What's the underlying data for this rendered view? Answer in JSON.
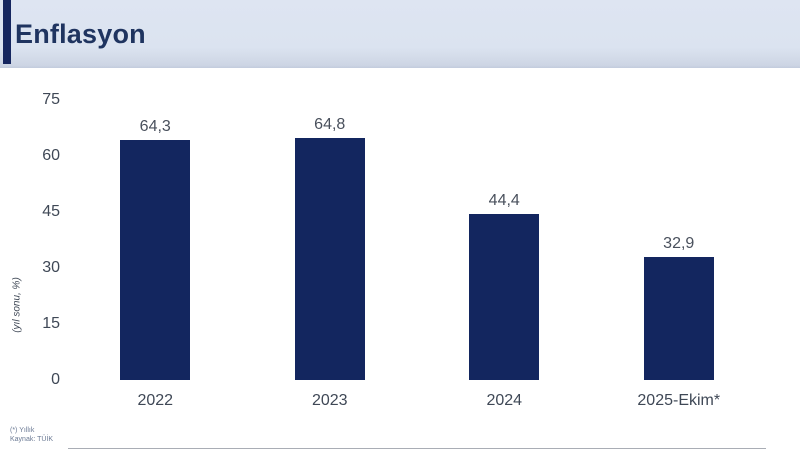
{
  "header": {
    "title": "Enflasyon"
  },
  "chart_data": {
    "type": "bar",
    "title": "Enflasyon",
    "categories": [
      "2022",
      "2023",
      "2024",
      "2025-Ekim*"
    ],
    "values": [
      64.3,
      64.8,
      44.4,
      32.9
    ],
    "value_labels": [
      "64,3",
      "64,8",
      "44,4",
      "32,9"
    ],
    "xlabel": "",
    "ylabel": "(yıl sonu, %)",
    "ylim": [
      0,
      75
    ],
    "yticks": [
      0,
      15,
      30,
      45,
      60,
      75
    ],
    "grid": false,
    "legend": false
  },
  "footnote": {
    "line1": "(*) Yıllık",
    "line2": "Kaynak: TÜİK"
  },
  "colors": {
    "bar": "#13265f",
    "header_bg": "#dbe3f0",
    "title": "#1f3460",
    "axis_line": "#a9adb5",
    "tick_label": "#3f4856",
    "value_label": "#49505c"
  }
}
